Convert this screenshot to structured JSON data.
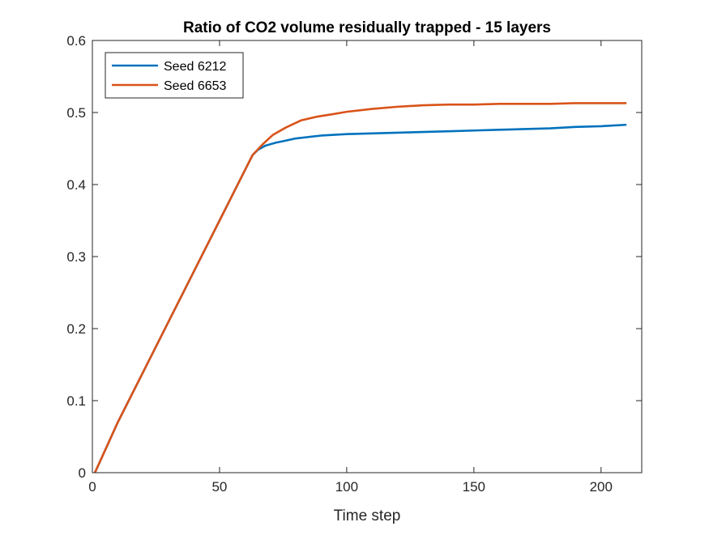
{
  "chart_data": {
    "type": "line",
    "title": "Ratio of CO2 volume residually trapped - 15 layers",
    "xlabel": "Time step",
    "ylabel": "",
    "xlim": [
      0,
      216
    ],
    "ylim": [
      0,
      0.6
    ],
    "xticks": [
      0,
      50,
      100,
      150,
      200
    ],
    "xtick_labels": [
      "0",
      "50",
      "100",
      "150",
      "200"
    ],
    "yticks": [
      0,
      0.1,
      0.2,
      0.3,
      0.4,
      0.5,
      0.6
    ],
    "ytick_labels": [
      "0",
      "0.1",
      "0.2",
      "0.3",
      "0.4",
      "0.5",
      "0.6"
    ],
    "grid": false,
    "legend_position": "top-left",
    "series": [
      {
        "name": "Seed 6212",
        "color": "#0072BD",
        "x": [
          1,
          10,
          20,
          30,
          40,
          50,
          60,
          63,
          65,
          68,
          72,
          76,
          80,
          85,
          90,
          100,
          110,
          120,
          130,
          140,
          150,
          160,
          170,
          180,
          190,
          200,
          210
        ],
        "y": [
          0,
          0.07,
          0.14,
          0.21,
          0.28,
          0.35,
          0.42,
          0.441,
          0.448,
          0.454,
          0.458,
          0.461,
          0.464,
          0.466,
          0.468,
          0.47,
          0.471,
          0.472,
          0.473,
          0.474,
          0.475,
          0.476,
          0.477,
          0.478,
          0.48,
          0.481,
          0.483
        ]
      },
      {
        "name": "Seed 6653",
        "color": "#D95319",
        "x": [
          1,
          10,
          20,
          30,
          40,
          50,
          60,
          63,
          67,
          71,
          76,
          82,
          88,
          95,
          100,
          110,
          120,
          130,
          140,
          150,
          160,
          170,
          180,
          190,
          200,
          210
        ],
        "y": [
          0,
          0.07,
          0.14,
          0.21,
          0.28,
          0.35,
          0.42,
          0.441,
          0.456,
          0.469,
          0.479,
          0.489,
          0.494,
          0.498,
          0.501,
          0.505,
          0.508,
          0.51,
          0.511,
          0.511,
          0.512,
          0.512,
          0.512,
          0.513,
          0.513,
          0.513
        ]
      }
    ]
  }
}
